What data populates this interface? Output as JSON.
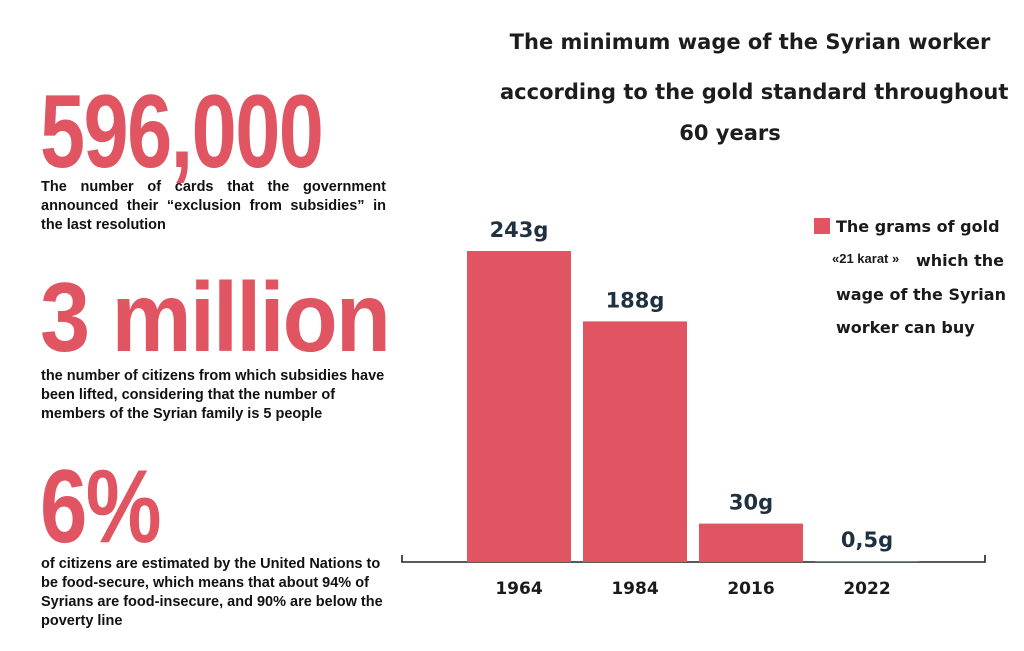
{
  "stats": [
    {
      "number": "596,000",
      "description": "The number of cards that the government announced their “exclusion from subsidies” in the last resolution"
    },
    {
      "number": "3 million",
      "description": "the number of citizens from which subsidies have been lifted, considering that the number of members of the Syrian family is 5 people"
    },
    {
      "number": "6%",
      "description": "of citizens are estimated by the United Nations to be food-secure, which means that about 94% of Syrians are food-insecure, and 90% are below the poverty line"
    }
  ],
  "chart_data": {
    "type": "bar",
    "title_lines": [
      "The minimum wage of the Syrian worker",
      "according to the gold standard throughout",
      "60 years"
    ],
    "categories": [
      "1964",
      "1984",
      "2016",
      "2022"
    ],
    "values": [
      243,
      188,
      30,
      0.5
    ],
    "data_labels": [
      "243g",
      "188g",
      "30g",
      "0,5g"
    ],
    "unit": "g",
    "legend": {
      "entry_lines": [
        "The grams of gold",
        "«21 karat »",
        "which the",
        "wage of the Syrian",
        "worker can buy"
      ],
      "position": "right"
    },
    "grid": false,
    "ylim": [
      0,
      243
    ]
  },
  "colors": {
    "accent": "#e05561",
    "label": "#1f3141",
    "text": "#111111"
  }
}
